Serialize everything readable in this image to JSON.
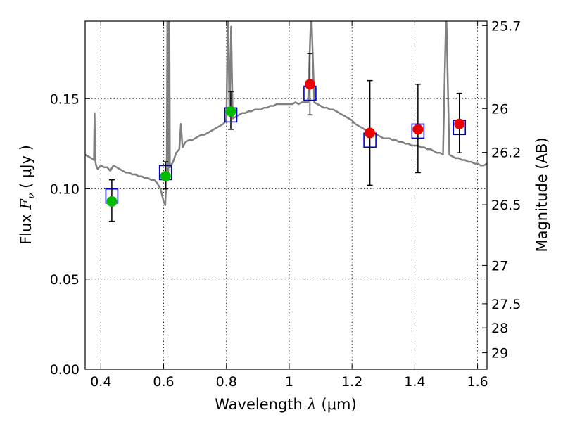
{
  "chart_data": {
    "type": "scatter",
    "title": "",
    "xlabel": {
      "prefix": "Wavelength  ",
      "symbol": "λ",
      "units": " (μm)"
    },
    "ylabel": {
      "prefix": "Flux  ",
      "symbol": "F",
      "subscript": "ν",
      "units": "  ( μJy )"
    },
    "ylabel_right": "Magnitude (AB)",
    "xlim": [
      0.35,
      1.63
    ],
    "ylim": [
      0.0,
      0.193
    ],
    "grid": true,
    "x_ticks": [
      {
        "value": 0.4,
        "label": "0.4"
      },
      {
        "value": 0.6,
        "label": "0.6"
      },
      {
        "value": 0.8,
        "label": "0.8"
      },
      {
        "value": 1.0,
        "label": "1"
      },
      {
        "value": 1.2,
        "label": "1.2"
      },
      {
        "value": 1.4,
        "label": "1.4"
      },
      {
        "value": 1.6,
        "label": "1.6"
      }
    ],
    "y_ticks": [
      {
        "value": 0.0,
        "label": "0.00"
      },
      {
        "value": 0.05,
        "label": "0.05"
      },
      {
        "value": 0.1,
        "label": "0.10"
      },
      {
        "value": 0.15,
        "label": "0.15"
      }
    ],
    "mag_ticks": [
      {
        "mag": 25.7,
        "label": "25.7"
      },
      {
        "mag": 26,
        "label": "26"
      },
      {
        "mag": 26.2,
        "label": "26.2"
      },
      {
        "mag": 26.5,
        "label": "26.5"
      },
      {
        "mag": 27,
        "label": "27"
      },
      {
        "mag": 27.5,
        "label": "27.5"
      },
      {
        "mag": 28,
        "label": "28"
      },
      {
        "mag": 29,
        "label": "29"
      }
    ],
    "model_spectrum": {
      "color": "#808080",
      "x": [
        0.35,
        0.36,
        0.37,
        0.378,
        0.38,
        0.382,
        0.385,
        0.39,
        0.4,
        0.41,
        0.42,
        0.43,
        0.44,
        0.45,
        0.46,
        0.47,
        0.48,
        0.49,
        0.5,
        0.51,
        0.52,
        0.53,
        0.54,
        0.55,
        0.56,
        0.57,
        0.58,
        0.59,
        0.6,
        0.605,
        0.61,
        0.612,
        0.615,
        0.618,
        0.62,
        0.63,
        0.64,
        0.65,
        0.655,
        0.66,
        0.67,
        0.68,
        0.69,
        0.7,
        0.71,
        0.72,
        0.73,
        0.74,
        0.75,
        0.76,
        0.77,
        0.78,
        0.79,
        0.8,
        0.805,
        0.81,
        0.815,
        0.82,
        0.83,
        0.84,
        0.85,
        0.86,
        0.87,
        0.88,
        0.89,
        0.9,
        0.91,
        0.92,
        0.93,
        0.94,
        0.95,
        0.96,
        0.97,
        0.98,
        0.99,
        1.0,
        1.01,
        1.02,
        1.03,
        1.04,
        1.05,
        1.06,
        1.07,
        1.08,
        1.09,
        1.1,
        1.11,
        1.12,
        1.13,
        1.14,
        1.15,
        1.16,
        1.17,
        1.18,
        1.19,
        1.2,
        1.21,
        1.22,
        1.23,
        1.24,
        1.25,
        1.26,
        1.27,
        1.28,
        1.29,
        1.3,
        1.31,
        1.32,
        1.33,
        1.34,
        1.35,
        1.36,
        1.37,
        1.38,
        1.39,
        1.4,
        1.41,
        1.42,
        1.43,
        1.44,
        1.45,
        1.46,
        1.47,
        1.48,
        1.49,
        1.5,
        1.51,
        1.52,
        1.53,
        1.54,
        1.55,
        1.56,
        1.57,
        1.58,
        1.59,
        1.6,
        1.61,
        1.62,
        1.63
      ],
      "y": [
        0.119,
        0.118,
        0.117,
        0.116,
        0.142,
        0.116,
        0.113,
        0.111,
        0.113,
        0.112,
        0.112,
        0.11,
        0.113,
        0.112,
        0.111,
        0.11,
        0.109,
        0.109,
        0.108,
        0.108,
        0.107,
        0.107,
        0.106,
        0.106,
        0.105,
        0.105,
        0.103,
        0.1,
        0.093,
        0.091,
        0.108,
        0.2,
        0.11,
        0.2,
        0.112,
        0.115,
        0.12,
        0.122,
        0.136,
        0.123,
        0.126,
        0.127,
        0.127,
        0.128,
        0.129,
        0.13,
        0.13,
        0.131,
        0.132,
        0.133,
        0.134,
        0.135,
        0.136,
        0.138,
        0.2,
        0.14,
        0.19,
        0.139,
        0.14,
        0.141,
        0.142,
        0.142,
        0.143,
        0.143,
        0.144,
        0.144,
        0.144,
        0.145,
        0.145,
        0.146,
        0.146,
        0.147,
        0.147,
        0.147,
        0.147,
        0.147,
        0.147,
        0.148,
        0.147,
        0.148,
        0.148,
        0.148,
        0.2,
        0.148,
        0.147,
        0.146,
        0.145,
        0.145,
        0.144,
        0.144,
        0.143,
        0.142,
        0.141,
        0.14,
        0.139,
        0.138,
        0.136,
        0.135,
        0.134,
        0.133,
        0.132,
        0.131,
        0.131,
        0.13,
        0.129,
        0.128,
        0.128,
        0.128,
        0.127,
        0.127,
        0.126,
        0.126,
        0.125,
        0.125,
        0.124,
        0.124,
        0.124,
        0.123,
        0.123,
        0.122,
        0.122,
        0.121,
        0.12,
        0.12,
        0.119,
        0.2,
        0.119,
        0.118,
        0.117,
        0.117,
        0.116,
        0.116,
        0.115,
        0.115,
        0.114,
        0.114,
        0.113,
        0.113,
        0.114
      ]
    },
    "model_bands": {
      "color": "#0000cc",
      "x": [
        0.435,
        0.606,
        0.814,
        1.066,
        1.257,
        1.41,
        1.542
      ],
      "y": [
        0.096,
        0.109,
        0.141,
        0.153,
        0.127,
        0.132,
        0.134
      ]
    },
    "observed": {
      "x": [
        0.435,
        0.606,
        0.814,
        1.066,
        1.257,
        1.41,
        1.542
      ],
      "y": [
        0.093,
        0.107,
        0.143,
        0.158,
        0.131,
        0.133,
        0.136
      ],
      "err_low": [
        0.082,
        0.1,
        0.133,
        0.141,
        0.102,
        0.109,
        0.12
      ],
      "err_high": [
        0.105,
        0.115,
        0.154,
        0.175,
        0.16,
        0.158,
        0.153
      ],
      "colors": [
        "#00bb00",
        "#00bb00",
        "#00bb00",
        "#ee0000",
        "#ee0000",
        "#ee0000",
        "#ee0000"
      ]
    }
  }
}
